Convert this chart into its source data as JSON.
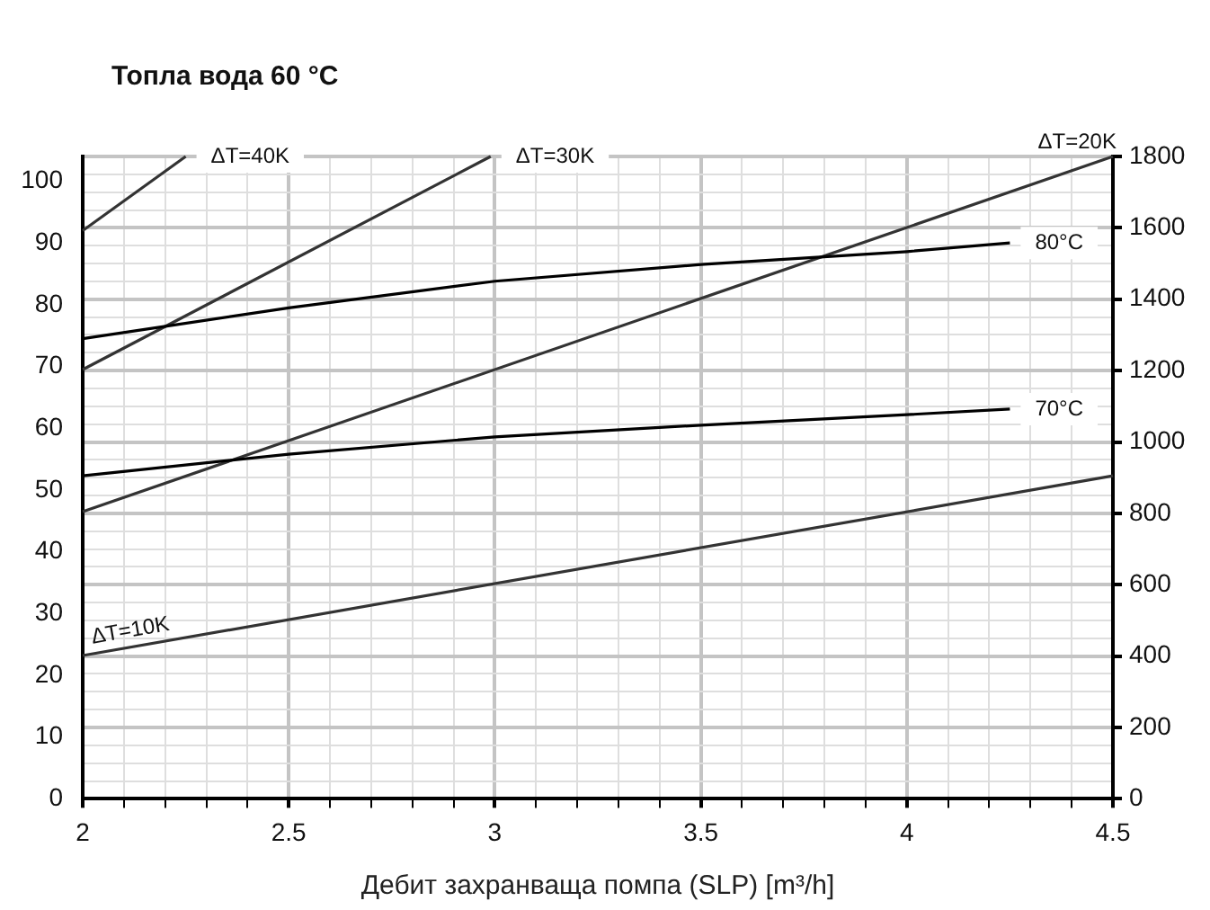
{
  "chart_data": {
    "type": "line",
    "title": "Топла вода 60 °C",
    "xlabel": "Дебит захранваща помпа (SLP) [m³/h]",
    "xlim": [
      2,
      4.5
    ],
    "xticks": [
      2,
      {
        "value": 2.1,
        "label": null
      },
      {
        "value": 2.2,
        "label": null
      },
      {
        "value": 2.3,
        "label": null
      },
      {
        "value": 2.4,
        "label": null
      },
      2.5,
      {
        "value": 2.6,
        "label": null
      },
      {
        "value": 2.7,
        "label": null
      },
      {
        "value": 2.8,
        "label": null
      },
      {
        "value": 2.9,
        "label": null
      },
      3,
      {
        "value": 3.1,
        "label": null
      },
      {
        "value": 3.2,
        "label": null
      },
      {
        "value": 3.3,
        "label": null
      },
      {
        "value": 3.4,
        "label": null
      },
      3.5,
      {
        "value": 3.6,
        "label": null
      },
      {
        "value": 3.7,
        "label": null
      },
      {
        "value": 3.8,
        "label": null
      },
      {
        "value": 3.9,
        "label": null
      },
      4,
      {
        "value": 4.1,
        "label": null
      },
      {
        "value": 4.2,
        "label": null
      },
      {
        "value": 4.3,
        "label": null
      },
      {
        "value": 4.4,
        "label": null
      },
      4.5
    ],
    "ylim": [
      0,
      104
    ],
    "yticks": [
      0,
      10,
      20,
      30,
      40,
      50,
      60,
      70,
      80,
      90,
      100
    ],
    "y2lim": [
      0,
      1800
    ],
    "y2ticks": [
      0,
      {
        "value": 50,
        "label": null
      },
      {
        "value": 100,
        "label": null
      },
      {
        "value": 150,
        "label": null
      },
      200,
      {
        "value": 250,
        "label": null
      },
      {
        "value": 300,
        "label": null
      },
      {
        "value": 350,
        "label": null
      },
      400,
      {
        "value": 450,
        "label": null
      },
      {
        "value": 500,
        "label": null
      },
      {
        "value": 550,
        "label": null
      },
      600,
      {
        "value": 650,
        "label": null
      },
      {
        "value": 700,
        "label": null
      },
      {
        "value": 750,
        "label": null
      },
      800,
      {
        "value": 850,
        "label": null
      },
      {
        "value": 900,
        "label": null
      },
      {
        "value": 950,
        "label": null
      },
      1000,
      {
        "value": 1050,
        "label": null
      },
      {
        "value": 1100,
        "label": null
      },
      {
        "value": 1150,
        "label": null
      },
      1200,
      {
        "value": 1250,
        "label": null
      },
      {
        "value": 1300,
        "label": null
      },
      {
        "value": 1350,
        "label": null
      },
      1400,
      {
        "value": 1450,
        "label": null
      },
      {
        "value": 1500,
        "label": null
      },
      {
        "value": 1550,
        "label": null
      },
      1600,
      {
        "value": 1650,
        "label": null
      },
      {
        "value": 1700,
        "label": null
      },
      {
        "value": 1750,
        "label": null
      },
      1800
    ],
    "grid": true,
    "legend": false,
    "marker": "none",
    "line_style": "solid",
    "series": [
      {
        "name": "80°C",
        "color": "#000000",
        "x": [
          2,
          2.5,
          3,
          3.5,
          4,
          4.25
        ],
        "values": [
          74.5,
          79.5,
          83.8,
          86.5,
          88.6,
          90.0
        ]
      },
      {
        "name": "70°C",
        "color": "#000000",
        "x": [
          2,
          2.5,
          3,
          3.5,
          4,
          4.25
        ],
        "values": [
          52.3,
          55.8,
          58.6,
          60.5,
          62.2,
          63.1
        ]
      },
      {
        "name": "ΔT=10K",
        "color": "#333333",
        "x": [
          2,
          4.5
        ],
        "values": [
          23.2,
          52.3
        ]
      },
      {
        "name": "ΔT=20K",
        "color": "#333333",
        "x": [
          2,
          4.5
        ],
        "values": [
          46.5,
          104
        ]
      },
      {
        "name": "ΔT=30K",
        "color": "#333333",
        "x": [
          2,
          2.99
        ],
        "values": [
          69.5,
          104
        ]
      },
      {
        "name": "ΔT=40K",
        "color": "#333333",
        "x": [
          2,
          2.25
        ],
        "values": [
          92,
          104
        ]
      }
    ]
  }
}
